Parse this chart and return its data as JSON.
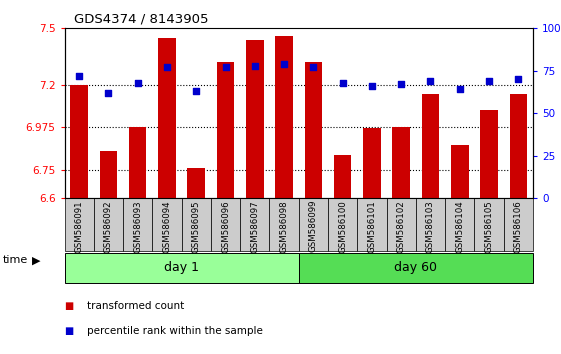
{
  "title": "GDS4374 / 8143905",
  "samples": [
    "GSM586091",
    "GSM586092",
    "GSM586093",
    "GSM586094",
    "GSM586095",
    "GSM586096",
    "GSM586097",
    "GSM586098",
    "GSM586099",
    "GSM586100",
    "GSM586101",
    "GSM586102",
    "GSM586103",
    "GSM586104",
    "GSM586105",
    "GSM586106"
  ],
  "bar_values": [
    7.2,
    6.85,
    6.975,
    7.45,
    6.76,
    7.32,
    7.44,
    7.46,
    7.32,
    6.83,
    6.97,
    6.975,
    7.15,
    6.88,
    7.07,
    7.15
  ],
  "dot_values": [
    72,
    62,
    68,
    77,
    63,
    77,
    78,
    79,
    77,
    68,
    66,
    67,
    69,
    64,
    69,
    70
  ],
  "ylim": [
    6.6,
    7.5
  ],
  "yticks": [
    6.6,
    6.75,
    6.975,
    7.2,
    7.5
  ],
  "ytick_labels": [
    "6.6",
    "6.75",
    "6.975",
    "7.2",
    "7.5"
  ],
  "y2lim": [
    0,
    100
  ],
  "y2ticks": [
    0,
    25,
    50,
    75,
    100
  ],
  "y2tick_labels": [
    "0",
    "25",
    "50",
    "75",
    "100%"
  ],
  "bar_color": "#cc0000",
  "dot_color": "#0000cc",
  "bar_bottom": 6.6,
  "bar_width": 0.6,
  "day1_samples": 8,
  "day1_label": "day 1",
  "day1_color": "#99ff99",
  "day60_label": "day 60",
  "day60_color": "#55dd55",
  "sample_box_color": "#cccccc",
  "legend_bar_label": "transformed count",
  "legend_dot_label": "percentile rank within the sample"
}
